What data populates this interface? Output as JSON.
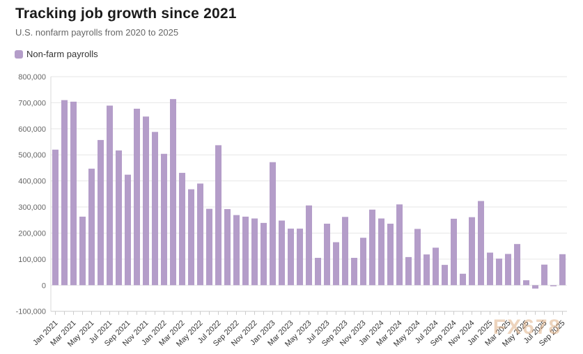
{
  "header": {
    "title": "Tracking job growth since 2021",
    "subtitle": "U.S. nonfarm payrolls from 2020 to 2025"
  },
  "legend": {
    "label": "Non-farm payrolls",
    "swatch_color": "#b49dc9"
  },
  "watermark": "FX678",
  "colors": {
    "bar": "#b49dc9",
    "grid": "#e6e6e6",
    "axis": "#cccccc",
    "y_label": "#666666",
    "x_label": "#333333",
    "watermark": "#dcaa7e"
  },
  "chart_data": {
    "type": "bar",
    "title": "Tracking job growth since 2021",
    "subtitle": "U.S. nonfarm payrolls from 2020 to 2025",
    "legend_position": "top-left",
    "grid": true,
    "ylim": [
      -100000,
      800000
    ],
    "ytick_step": 100000,
    "ytick_labels": [
      "800,000",
      "700,000",
      "600,000",
      "500,000",
      "400,000",
      "300,000",
      "200,000",
      "100,000",
      "0",
      "-100,000"
    ],
    "xtick_labels": [
      "Jan 2021",
      "Mar 2021",
      "May 2021",
      "Jul 2021",
      "Sep 2021",
      "Nov 2021",
      "Jan 2022",
      "Mar 2022",
      "May 2022",
      "Jul 2022",
      "Sep 2022",
      "Nov 2022",
      "Jan 2023",
      "Mar 2023",
      "May 2023",
      "Jul 2023",
      "Sep 2023",
      "Nov 2023",
      "Jan 2024",
      "Mar 2024",
      "May 2024",
      "Jul 2024",
      "Sep 2024",
      "Nov 2024",
      "Jan 2025",
      "Mar 2025",
      "May 2025",
      "Jul 2025",
      "Sep 2025"
    ],
    "categories": [
      "Jan 2021",
      "Feb 2021",
      "Mar 2021",
      "Apr 2021",
      "May 2021",
      "Jun 2021",
      "Jul 2021",
      "Aug 2021",
      "Sep 2021",
      "Oct 2021",
      "Nov 2021",
      "Dec 2021",
      "Jan 2022",
      "Feb 2022",
      "Mar 2022",
      "Apr 2022",
      "May 2022",
      "Jun 2022",
      "Jul 2022",
      "Aug 2022",
      "Sep 2022",
      "Oct 2022",
      "Nov 2022",
      "Dec 2022",
      "Jan 2023",
      "Feb 2023",
      "Mar 2023",
      "Apr 2023",
      "May 2023",
      "Jun 2023",
      "Jul 2023",
      "Aug 2023",
      "Sep 2023",
      "Oct 2023",
      "Nov 2023",
      "Dec 2023",
      "Jan 2024",
      "Feb 2024",
      "Mar 2024",
      "Apr 2024",
      "May 2024",
      "Jun 2024",
      "Jul 2024",
      "Aug 2024",
      "Sep 2024",
      "Oct 2024",
      "Nov 2024",
      "Dec 2024",
      "Jan 2025",
      "Feb 2025",
      "Mar 2025",
      "Apr 2025",
      "May 2025",
      "Jun 2025",
      "Jul 2025",
      "Aug 2025",
      "Sep 2025"
    ],
    "series": [
      {
        "name": "Non-farm payrolls",
        "values": [
          520000,
          710000,
          704000,
          263000,
          447000,
          557000,
          689000,
          517000,
          424000,
          677000,
          647000,
          588000,
          504000,
          714000,
          431000,
          368000,
          390000,
          293000,
          537000,
          292000,
          269000,
          263000,
          256000,
          239000,
          472000,
          248000,
          217000,
          217000,
          306000,
          105000,
          236000,
          165000,
          262000,
          105000,
          182000,
          290000,
          256000,
          236000,
          310000,
          108000,
          216000,
          118000,
          144000,
          78000,
          255000,
          44000,
          261000,
          323000,
          125000,
          102000,
          120000,
          158000,
          19000,
          -13000,
          79000,
          -4000,
          119000
        ]
      }
    ]
  }
}
